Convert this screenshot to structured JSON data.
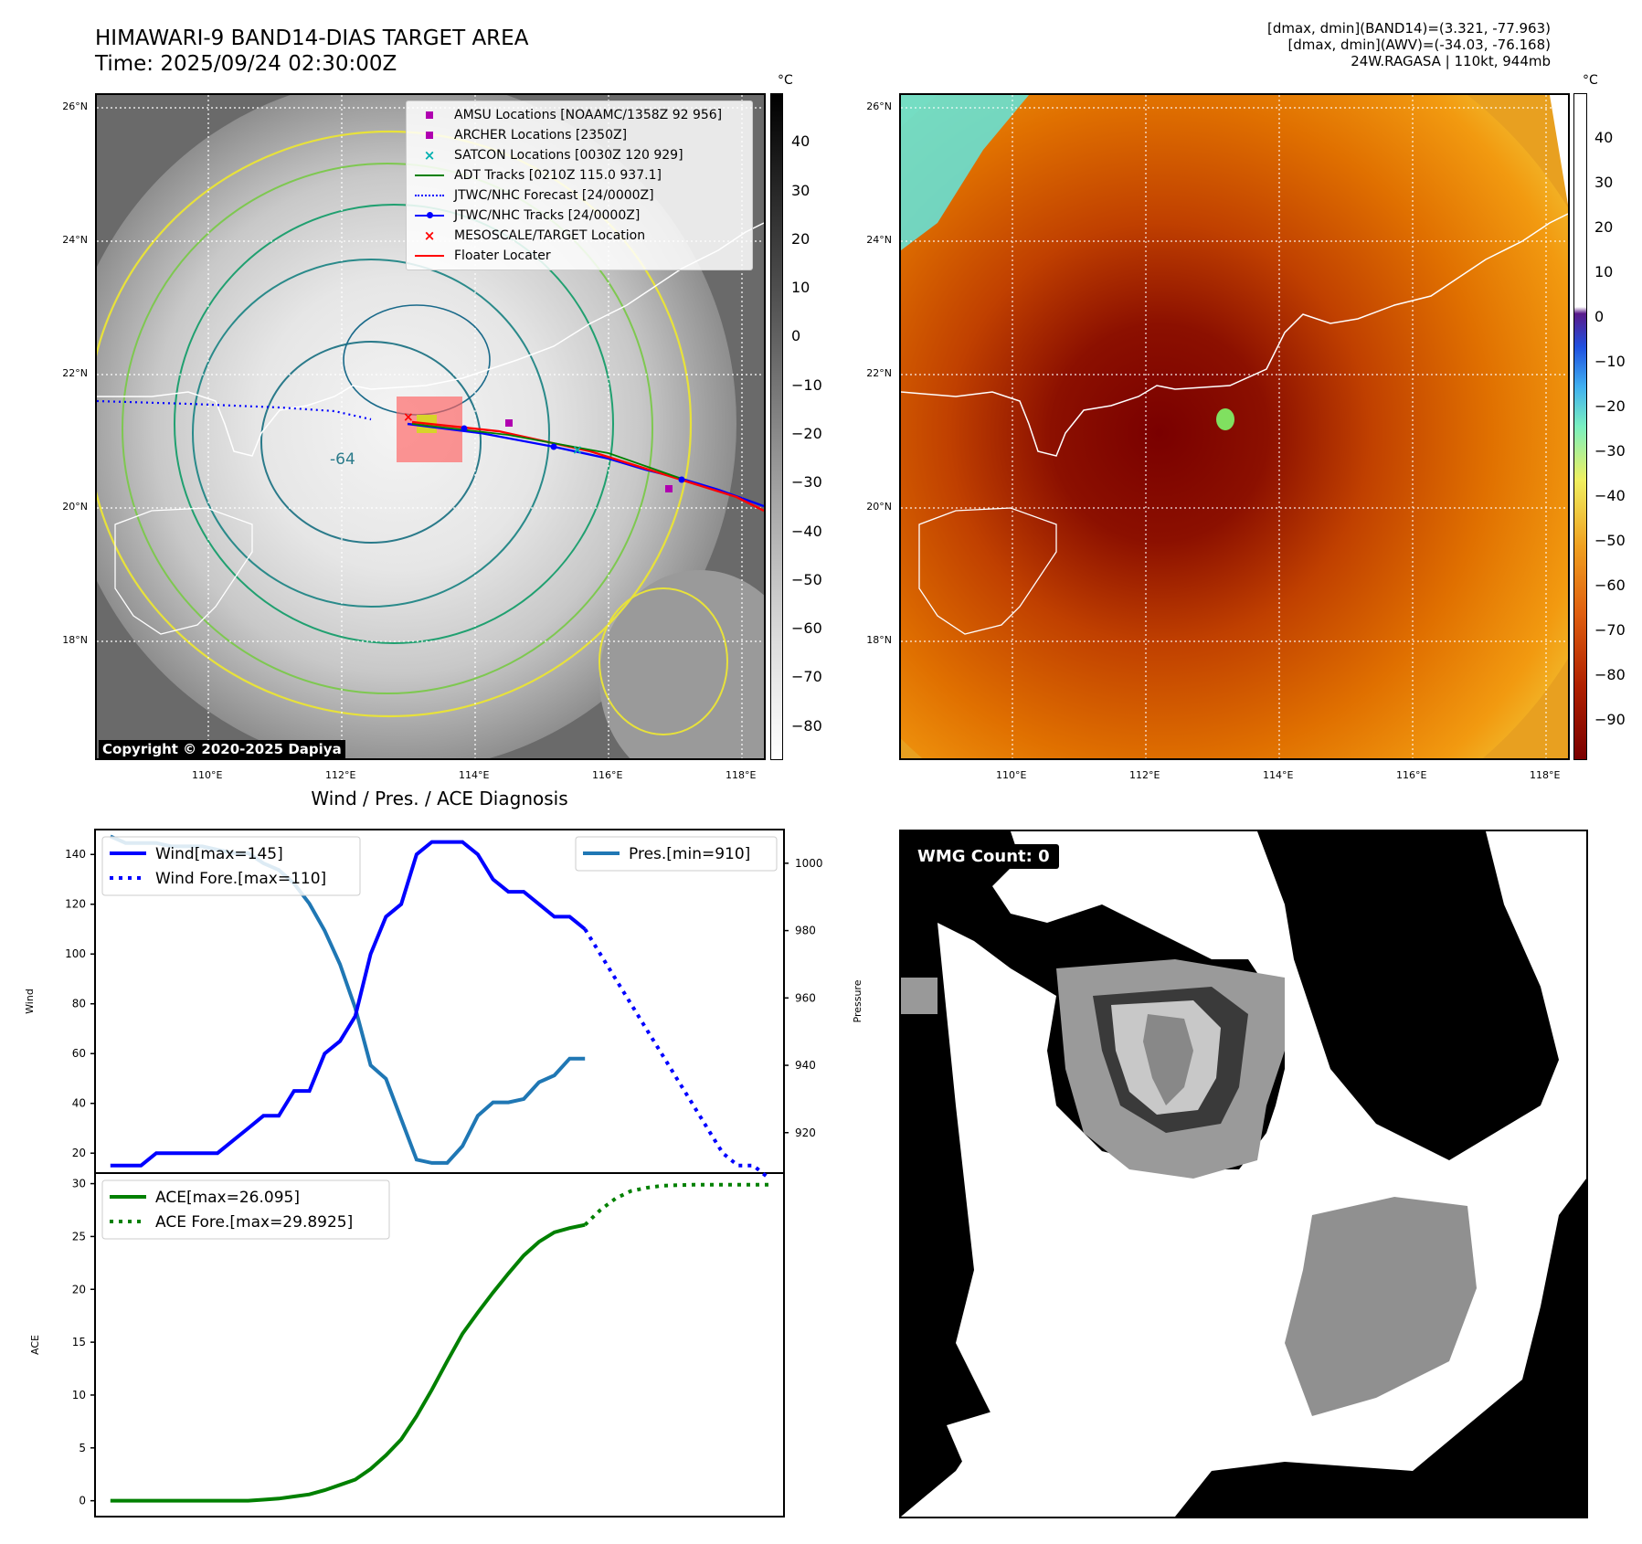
{
  "header": {
    "title_line1": "HIMAWARI-9 BAND14-DIAS TARGET AREA",
    "title_line2": "Time: 2025/09/24 02:30:00Z",
    "info_line1": "[dmax, dmin](BAND14)=(3.321, -77.963)",
    "info_line2": "[dmax, dmin](AWV)=(-34.03, -76.168)",
    "info_line3": "24W.RAGASA | 110kt, 944mb"
  },
  "map_left": {
    "lat_ticks": [
      "26°N",
      "24°N",
      "22°N",
      "20°N",
      "18°N"
    ],
    "lon_ticks": [
      "110°E",
      "112°E",
      "114°E",
      "116°E",
      "118°E"
    ],
    "copyright": "Copyright © 2020-2025 Dapiya",
    "contour_label": "-64",
    "colorbar_unit": "°C",
    "colorbar_ticks": [
      "40",
      "30",
      "20",
      "10",
      "0",
      "−10",
      "−20",
      "−30",
      "−40",
      "−50",
      "−60",
      "−70",
      "−80"
    ],
    "legend": [
      {
        "label": "AMSU Locations [NOAAMC/1358Z 92 956]",
        "symbol": "square",
        "color": "#b000b0"
      },
      {
        "label": "ARCHER Locations [2350Z]",
        "symbol": "square",
        "color": "#b000b0"
      },
      {
        "label": "SATCON Locations [0030Z 120 929]",
        "symbol": "x",
        "color": "#00b0b0"
      },
      {
        "label": "ADT Tracks [0210Z 115.0 937.1]",
        "symbol": "line",
        "color": "#008000"
      },
      {
        "label": "JTWC/NHC Forecast [24/0000Z]",
        "symbol": "dotted",
        "color": "#0000ff"
      },
      {
        "label": "JTWC/NHC Tracks [24/0000Z]",
        "symbol": "line-dot",
        "color": "#0000ff"
      },
      {
        "label": "MESOSCALE/TARGET Location",
        "symbol": "x",
        "color": "#ff0000"
      },
      {
        "label": "Floater Locater",
        "symbol": "line",
        "color": "#ff0000"
      }
    ]
  },
  "map_right": {
    "lat_ticks": [
      "26°N",
      "24°N",
      "22°N",
      "20°N",
      "18°N"
    ],
    "lon_ticks": [
      "110°E",
      "112°E",
      "114°E",
      "116°E",
      "118°E"
    ],
    "colorbar_unit": "°C",
    "colorbar_ticks": [
      "40",
      "30",
      "20",
      "10",
      "0",
      "−10",
      "−20",
      "−30",
      "−40",
      "−50",
      "−60",
      "−70",
      "−80",
      "−90"
    ]
  },
  "wmg": {
    "label": "WMG Count: 0"
  },
  "chart_data": [
    {
      "type": "line",
      "title": "Wind / Pres. / ACE Diagnosis",
      "ylabel": "Wind",
      "ylabel_right": "Pressure",
      "ylim": [
        12,
        150
      ],
      "ylim_right": [
        908,
        1010
      ],
      "yticks": [
        "20",
        "40",
        "60",
        "80",
        "100",
        "120",
        "140"
      ],
      "yticks_right": [
        "920",
        "940",
        "960",
        "980",
        "1000"
      ],
      "series": [
        {
          "name": "Wind[max=145]",
          "color": "#0000ff",
          "style": "solid",
          "x": [
            0,
            1,
            2,
            3,
            4,
            5,
            6,
            7,
            8,
            9,
            10,
            11,
            12,
            13,
            14,
            15,
            16,
            17,
            18,
            19,
            20,
            21,
            22,
            23,
            24,
            25,
            26,
            27,
            28,
            29,
            30,
            31
          ],
          "values": [
            15,
            15,
            15,
            20,
            20,
            20,
            20,
            20,
            25,
            30,
            35,
            35,
            45,
            45,
            60,
            65,
            75,
            100,
            115,
            120,
            140,
            145,
            145,
            145,
            140,
            130,
            125,
            125,
            120,
            115,
            115,
            110
          ]
        },
        {
          "name": "Wind Fore.[max=110]",
          "color": "#0000ff",
          "style": "dotted",
          "x": [
            31,
            32,
            33,
            34,
            35,
            36,
            37,
            38,
            39,
            40,
            41,
            42,
            43
          ],
          "values": [
            110,
            100,
            90,
            80,
            70,
            60,
            50,
            40,
            30,
            20,
            15,
            15,
            10
          ]
        },
        {
          "name": "Pres.[min=910]",
          "color": "#1f77b4",
          "style": "solid",
          "axis": "right",
          "x": [
            0,
            1,
            2,
            3,
            4,
            5,
            6,
            7,
            8,
            9,
            10,
            11,
            12,
            13,
            14,
            15,
            16,
            17,
            18,
            19,
            20,
            21,
            22,
            23,
            24,
            25,
            26,
            27,
            28,
            29,
            30,
            31
          ],
          "values": [
            1008,
            1006,
            1006,
            1006,
            1005,
            1005,
            1005,
            1004,
            1003,
            1003,
            1000,
            998,
            994,
            988,
            980,
            970,
            957,
            940,
            936,
            924,
            912,
            911,
            911,
            916,
            925,
            929,
            929,
            930,
            935,
            937,
            942,
            942
          ]
        }
      ]
    },
    {
      "type": "line",
      "ylabel": "ACE",
      "ylim": [
        -1.5,
        31
      ],
      "yticks": [
        "0",
        "5",
        "10",
        "15",
        "20",
        "25",
        "30"
      ],
      "series": [
        {
          "name": "ACE[max=26.095]",
          "color": "#008000",
          "style": "solid",
          "x": [
            0,
            1,
            2,
            3,
            4,
            5,
            6,
            7,
            8,
            9,
            10,
            11,
            12,
            13,
            14,
            15,
            16,
            17,
            18,
            19,
            20,
            21,
            22,
            23,
            24,
            25,
            26,
            27,
            28,
            29,
            30,
            31
          ],
          "values": [
            0,
            0,
            0,
            0,
            0,
            0,
            0,
            0,
            0,
            0,
            0.1,
            0.2,
            0.4,
            0.6,
            1.0,
            1.5,
            2.0,
            3.0,
            4.3,
            5.8,
            8.0,
            10.5,
            13.2,
            15.8,
            17.8,
            19.7,
            21.5,
            23.2,
            24.5,
            25.4,
            25.8,
            26.095
          ]
        },
        {
          "name": "ACE Fore.[max=29.8925]",
          "color": "#008000",
          "style": "dotted",
          "x": [
            31,
            32,
            33,
            34,
            35,
            36,
            37,
            38,
            39,
            40,
            41,
            42,
            43
          ],
          "values": [
            26.095,
            27.5,
            28.6,
            29.3,
            29.6,
            29.8,
            29.85,
            29.89,
            29.89,
            29.89,
            29.89,
            29.89,
            29.89
          ]
        }
      ]
    }
  ]
}
